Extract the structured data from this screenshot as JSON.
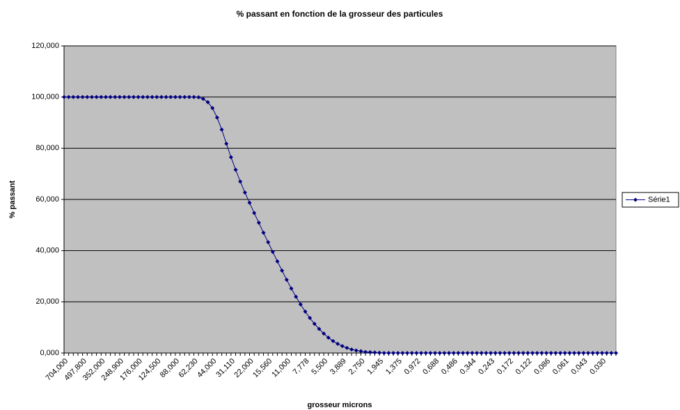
{
  "chart_data": {
    "type": "line",
    "title": "% passant en fonction de la grosseur des particules",
    "x_label": "grosseur microns",
    "y_label": "% passant",
    "categories": [
      "704,000",
      null,
      null,
      null,
      "497,800",
      null,
      null,
      null,
      "352,000",
      null,
      null,
      null,
      "248,900",
      null,
      null,
      null,
      "176,000",
      null,
      null,
      null,
      "124,500",
      null,
      null,
      null,
      "88,000",
      null,
      null,
      null,
      "62,230",
      null,
      null,
      null,
      "44,000",
      null,
      null,
      null,
      "31,110",
      null,
      null,
      null,
      "22,000",
      null,
      null,
      null,
      "15,560",
      null,
      null,
      null,
      "11,000",
      null,
      null,
      null,
      "7,778",
      null,
      null,
      null,
      "5,500",
      null,
      null,
      null,
      "3,889",
      null,
      null,
      null,
      "2,750",
      null,
      null,
      null,
      "1,945",
      null,
      null,
      null,
      "1,375",
      null,
      null,
      null,
      "0,972",
      null,
      null,
      null,
      "0,688",
      null,
      null,
      null,
      "0,486",
      null,
      null,
      null,
      "0,344",
      null,
      null,
      null,
      "0,243",
      null,
      null,
      null,
      "0,172",
      null,
      null,
      null,
      "0,122",
      null,
      null,
      null,
      "0,086",
      null,
      null,
      null,
      "0,061",
      null,
      null,
      null,
      "0,043",
      null,
      null,
      null,
      "0,030",
      null,
      null,
      null
    ],
    "series": [
      {
        "name": "Série1",
        "color": "#000080",
        "values": [
          100,
          100,
          100,
          100,
          100,
          100,
          100,
          100,
          100,
          100,
          100,
          100,
          100,
          100,
          100,
          100,
          100,
          100,
          100,
          100,
          100,
          100,
          100,
          100,
          100,
          100,
          100,
          100,
          100,
          99.9,
          99.3,
          98,
          95.7,
          92,
          87.3,
          81.8,
          76.5,
          71.6,
          67,
          62.7,
          58.7,
          54.7,
          50.9,
          47,
          43.3,
          39.5,
          35.8,
          32.2,
          28.6,
          25.2,
          22,
          19,
          16.2,
          13.7,
          11.4,
          9.4,
          7.6,
          6,
          4.7,
          3.6,
          2.7,
          2,
          1.4,
          1,
          0.7,
          0.4,
          0.3,
          0.2,
          0.1,
          0,
          0,
          0,
          0,
          0,
          0,
          0,
          0,
          0,
          0,
          0,
          0,
          0,
          0,
          0,
          0,
          0,
          0,
          0,
          0,
          0,
          0,
          0,
          0,
          0,
          0,
          0,
          0,
          0,
          0,
          0,
          0,
          0,
          0,
          0,
          0,
          0,
          0,
          0,
          0,
          0,
          0,
          0,
          0,
          0,
          0,
          0,
          0,
          0,
          0,
          0
        ]
      }
    ],
    "ylim": [
      0,
      120
    ],
    "yticks": [
      {
        "value": 0,
        "label": "0,000"
      },
      {
        "value": 20,
        "label": "20,000"
      },
      {
        "value": 40,
        "label": "40,000"
      },
      {
        "value": 60,
        "label": "60,000"
      },
      {
        "value": 80,
        "label": "80,000"
      },
      {
        "value": 100,
        "label": "100,000"
      },
      {
        "value": 120,
        "label": "120,000"
      }
    ],
    "grid": true,
    "legend": "right",
    "plot_background": "#c0c0c0"
  }
}
